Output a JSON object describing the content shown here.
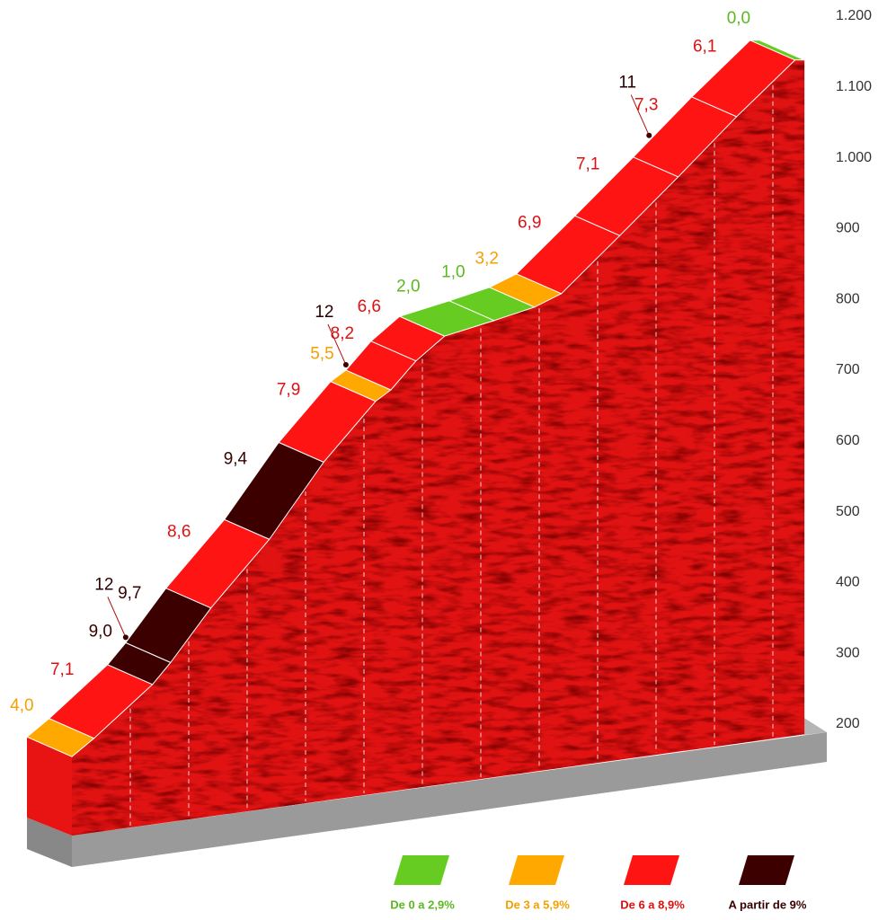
{
  "chart_data": {
    "type": "climb-profile",
    "x": [
      0,
      0.38,
      1.38,
      1.69,
      2.38,
      3.38,
      4.31,
      5.2,
      5.46,
      5.89,
      6.38,
      7.23,
      7.92,
      8.38,
      9.38,
      10.38,
      11.38,
      12.38,
      12.54
    ],
    "elevation": [
      182,
      208,
      284,
      315,
      392,
      489,
      598,
      684,
      700,
      741,
      776,
      798,
      817,
      836,
      918,
      1001,
      1086,
      1166,
      1166
    ],
    "segments": {
      "values": [
        4.0,
        7.1,
        9.0,
        9.7,
        8.6,
        9.4,
        7.9,
        5.5,
        8.2,
        6.6,
        2.0,
        1.0,
        3.2,
        6.9,
        7.1,
        7.3,
        6.1,
        0.0
      ],
      "value_labels": [
        "4,0",
        "7,1",
        "9,0",
        "9,7",
        "8,6",
        "9,4",
        "7,9",
        "5,5",
        "8,2",
        "6,6",
        "2,0",
        "1,0",
        "3,2",
        "6,9",
        "7,1",
        "7,3",
        "6,1",
        "0,0"
      ],
      "classes": [
        1,
        2,
        3,
        3,
        2,
        3,
        2,
        1,
        2,
        2,
        0,
        0,
        1,
        2,
        2,
        2,
        2,
        0
      ]
    },
    "annotations": [
      {
        "value": 12,
        "x": 1.69
      },
      {
        "value": 12,
        "x": 5.46
      },
      {
        "value": 11,
        "x": 10.65
      }
    ],
    "ylim": [
      200,
      1200
    ],
    "yticks": [
      200,
      300,
      400,
      500,
      600,
      700,
      800,
      900,
      {
        "value": 1000,
        "label": "1.000"
      },
      {
        "value": 1100,
        "label": "1.100"
      },
      {
        "value": 1200,
        "label": "1.200"
      }
    ],
    "legend": [
      {
        "label": "De 0 a 2,9%",
        "color": "#66cc22",
        "text_color": "#5cb81e"
      },
      {
        "label": "De 3 a 5,9%",
        "color": "#ffa800",
        "text_color": "#f5a000"
      },
      {
        "label": "De 6 a 8,9%",
        "color": "#ff1414",
        "text_color": "#e01010"
      },
      {
        "label": "A partir de 9%",
        "color": "#3d0000",
        "text_color": "#3a0000"
      }
    ]
  }
}
